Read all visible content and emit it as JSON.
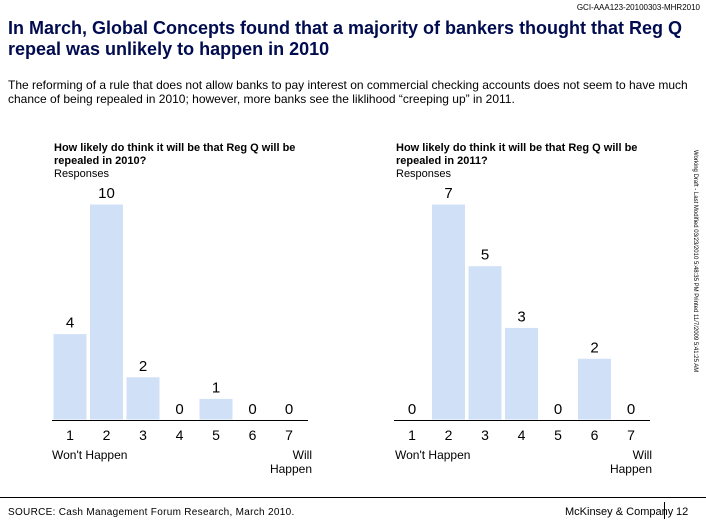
{
  "doc_id": "GCI-AAA123-20100303-MHR2010",
  "headline": "In March, Global Concepts found that a majority of bankers thought that Reg Q repeal was unlikely to happen in 2010",
  "subtext": "The reforming of a rule that does not allow banks to pay interest on commercial checking accounts does not seem to have much chance of being repealed in 2010; however, more banks see the liklihood “creeping up” in 2011.",
  "side_note": "Working Draft - Last Modified 03/23/2010 5:48:35 PM     Printed 11/7/2009 5:41:25 AM",
  "chart_data": [
    {
      "type": "bar",
      "title": "How likely do think it will be that Reg Q will be repealed in 2010?",
      "subtitle": "Responses",
      "categories": [
        "1",
        "2",
        "3",
        "4",
        "5",
        "6",
        "7"
      ],
      "values": [
        4,
        10,
        2,
        0,
        1,
        0,
        0
      ],
      "low_label": "Won't Happen",
      "high_label": "Will Happen",
      "ylim": [
        0,
        10
      ]
    },
    {
      "type": "bar",
      "title": "How likely do think it will be that Reg Q will be repealed in 2011?",
      "subtitle": "Responses",
      "categories": [
        "1",
        "2",
        "3",
        "4",
        "5",
        "6",
        "7"
      ],
      "values": [
        0,
        7,
        5,
        3,
        0,
        2,
        0
      ],
      "low_label": "Won't Happen",
      "high_label": "Will Happen",
      "ylim": [
        0,
        7
      ]
    }
  ],
  "colors": {
    "bar": "#cfe0f7",
    "headline": "#000c4f"
  },
  "footer": {
    "source": "SOURCE: Cash Management Forum Research, March 2010.",
    "brand": "McKinsey & Company",
    "page": "12"
  }
}
